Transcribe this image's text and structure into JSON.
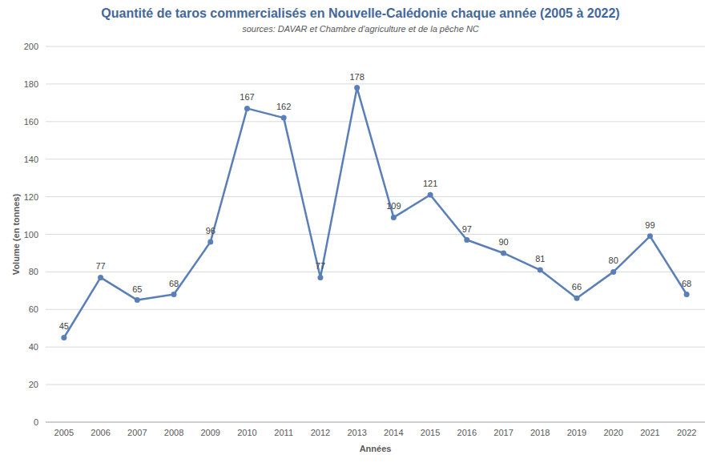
{
  "chart_data": {
    "type": "line",
    "title": "Quantité de taros commercialisés en Nouvelle-Calédonie chaque année (2005 à 2022)",
    "subtitle": "sources: DAVAR et Chambre d'agriculture et de la pêche NC",
    "x_label": "Années",
    "y_label": "Volume (en tonnes)",
    "categories": [
      "2005",
      "2006",
      "2007",
      "2008",
      "2009",
      "2010",
      "2011",
      "2012",
      "2013",
      "2014",
      "2015",
      "2016",
      "2017",
      "2018",
      "2019",
      "2020",
      "2021",
      "2022"
    ],
    "values": [
      45,
      77,
      65,
      68,
      96,
      167,
      162,
      77,
      178,
      109,
      121,
      97,
      90,
      81,
      66,
      80,
      99,
      68
    ],
    "color": "#5a7fb8",
    "marker": "circle",
    "ylim": [
      0,
      200
    ],
    "yticks": [
      0,
      20,
      40,
      60,
      80,
      100,
      120,
      140,
      160,
      180,
      200
    ],
    "grid": true,
    "data_labels": true
  }
}
